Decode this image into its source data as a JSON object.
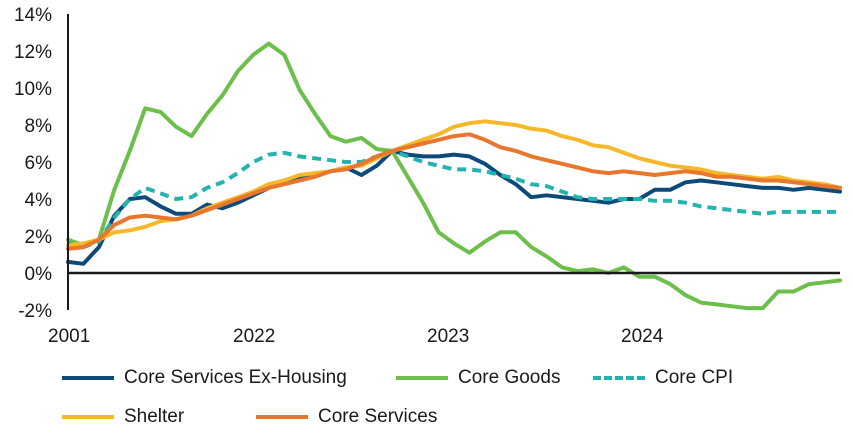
{
  "chart_data": {
    "type": "line",
    "title": "",
    "xlabel": "",
    "ylabel": "",
    "ylim": [
      -2,
      14
    ],
    "xlim": [
      2001,
      2024.96
    ],
    "x_tick_labels": [
      "2001",
      "2022",
      "2023",
      "2024"
    ],
    "y_tick_labels": [
      "-2%",
      "0%",
      "2%",
      "4%",
      "6%",
      "8%",
      "10%",
      "12%",
      "14%"
    ],
    "y_ticks": [
      -2,
      0,
      2,
      4,
      6,
      8,
      10,
      12,
      14
    ],
    "grid": false,
    "legend_position": "bottom",
    "series": [
      {
        "name": "Core Services Ex-Housing",
        "color": "#0b4a7a",
        "style": "solid",
        "values": [
          0.6,
          0.5,
          1.4,
          3.1,
          4.0,
          4.1,
          3.6,
          3.2,
          3.2,
          3.7,
          3.5,
          3.8,
          4.2,
          4.6,
          4.9,
          5.1,
          5.3,
          5.5,
          5.7,
          5.3,
          5.8,
          6.6,
          6.4,
          6.3,
          6.3,
          6.4,
          6.3,
          5.9,
          5.3,
          4.8,
          4.1,
          4.2,
          4.1,
          4.0,
          3.9,
          3.8,
          4.0,
          4.0,
          4.5,
          4.5,
          4.9,
          5.0,
          4.9,
          4.8,
          4.7,
          4.6,
          4.6,
          4.5,
          4.6,
          4.5,
          4.4
        ]
      },
      {
        "name": "Core Goods",
        "color": "#6bbf4a",
        "style": "solid",
        "values": [
          1.8,
          1.5,
          1.8,
          4.5,
          6.6,
          8.9,
          8.7,
          7.9,
          7.4,
          8.6,
          9.6,
          10.9,
          11.8,
          12.4,
          11.8,
          9.9,
          8.6,
          7.4,
          7.1,
          7.3,
          6.7,
          6.6,
          5.2,
          3.8,
          2.2,
          1.6,
          1.1,
          1.7,
          2.2,
          2.2,
          1.4,
          0.9,
          0.3,
          0.1,
          0.2,
          0.0,
          0.3,
          -0.2,
          -0.2,
          -0.6,
          -1.2,
          -1.6,
          -1.7,
          -1.8,
          -1.9,
          -1.9,
          -1.0,
          -1.0,
          -0.6,
          -0.5,
          -0.4
        ]
      },
      {
        "name": "Core CPI",
        "color": "#23b4b0",
        "style": "dashed",
        "values": [
          1.6,
          1.4,
          1.7,
          3.0,
          4.0,
          4.6,
          4.3,
          4.0,
          4.1,
          4.6,
          4.9,
          5.4,
          6.0,
          6.4,
          6.5,
          6.3,
          6.2,
          6.1,
          6.0,
          6.0,
          6.3,
          6.6,
          6.3,
          6.0,
          5.8,
          5.6,
          5.6,
          5.5,
          5.3,
          5.1,
          4.8,
          4.7,
          4.4,
          4.1,
          4.0,
          4.0,
          4.0,
          4.0,
          3.9,
          3.9,
          3.8,
          3.6,
          3.5,
          3.4,
          3.3,
          3.2,
          3.3,
          3.3,
          3.3,
          3.3,
          3.3
        ]
      },
      {
        "name": "Shelter",
        "color": "#f5b82a",
        "style": "solid",
        "values": [
          1.5,
          1.6,
          1.8,
          2.2,
          2.3,
          2.5,
          2.8,
          2.9,
          3.1,
          3.5,
          3.8,
          4.1,
          4.4,
          4.8,
          5.0,
          5.3,
          5.4,
          5.5,
          5.7,
          5.8,
          6.2,
          6.6,
          6.9,
          7.2,
          7.5,
          7.9,
          8.1,
          8.2,
          8.1,
          8.0,
          7.8,
          7.7,
          7.4,
          7.2,
          6.9,
          6.8,
          6.5,
          6.2,
          6.0,
          5.8,
          5.7,
          5.6,
          5.4,
          5.3,
          5.2,
          5.1,
          5.2,
          5.0,
          4.9,
          4.8,
          4.6
        ]
      },
      {
        "name": "Core Services",
        "color": "#e8762d",
        "style": "solid",
        "values": [
          1.3,
          1.4,
          1.8,
          2.6,
          3.0,
          3.1,
          3.0,
          2.9,
          3.1,
          3.4,
          3.7,
          4.0,
          4.3,
          4.6,
          4.8,
          5.0,
          5.2,
          5.5,
          5.6,
          5.9,
          6.3,
          6.6,
          6.8,
          7.0,
          7.2,
          7.4,
          7.5,
          7.2,
          6.8,
          6.6,
          6.3,
          6.1,
          5.9,
          5.7,
          5.5,
          5.4,
          5.5,
          5.4,
          5.3,
          5.4,
          5.5,
          5.4,
          5.2,
          5.2,
          5.1,
          5.0,
          5.0,
          4.9,
          4.8,
          4.7,
          4.6
        ]
      }
    ]
  }
}
